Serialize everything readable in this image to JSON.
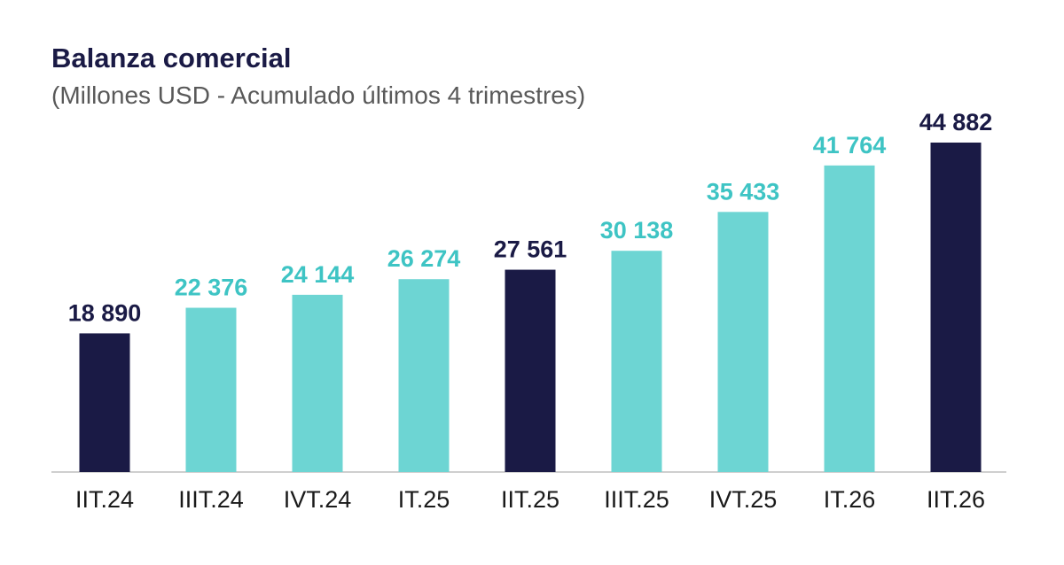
{
  "chart_data": {
    "type": "bar",
    "title": "Balanza comercial",
    "subtitle": "(Millones USD - Acumulado últimos 4 trimestres)",
    "categories": [
      "IIT.24",
      "IIIT.24",
      "IVT.24",
      "IT.25",
      "IIT.25",
      "IIIT.25",
      "IVT.25",
      "IT.26",
      "IIT.26"
    ],
    "values": [
      18890,
      22376,
      24144,
      26274,
      27561,
      30138,
      35433,
      41764,
      44882
    ],
    "value_labels": [
      "18 890",
      "22 376",
      "24 144",
      "26 274",
      "27 561",
      "30 138",
      "35 433",
      "41 764",
      "44 882"
    ],
    "highlighted": [
      true,
      false,
      false,
      false,
      true,
      false,
      false,
      false,
      true
    ],
    "ylim": [
      0,
      44882
    ],
    "grid": false,
    "legend": "none",
    "colors": {
      "highlight": "#1a1a45",
      "normal": "#6dd5d3",
      "highlight_label": "#1a1a45",
      "normal_label": "#3ec4c4",
      "axis": "#bfbfbf"
    }
  }
}
